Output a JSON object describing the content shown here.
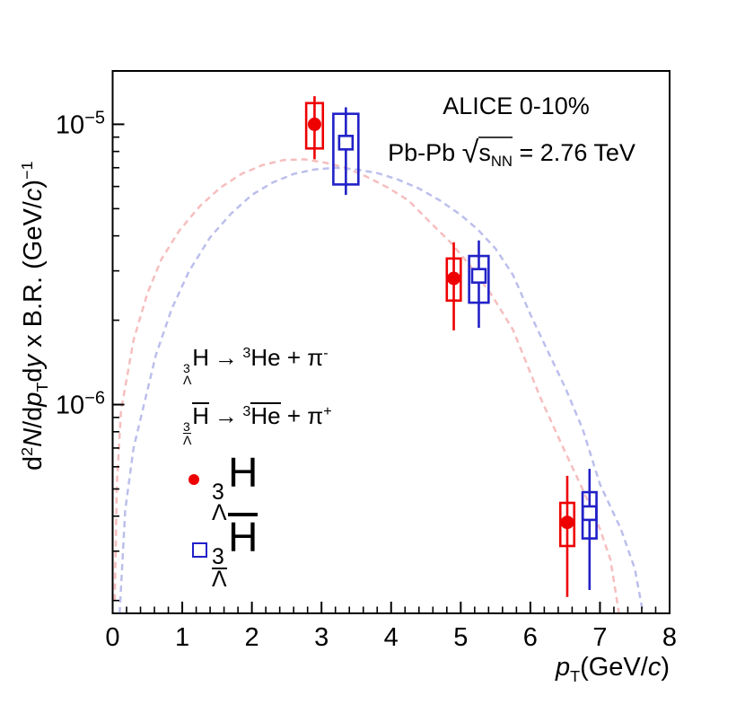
{
  "figure": {
    "annotations": {
      "experiment": "ALICE 0-10%",
      "system_prefix": "Pb-Pb ",
      "sqrt_symbol": "√",
      "sqrt_arg": "s",
      "sqrt_sub": "NN",
      "energy_suffix": " = 2.76 TeV"
    },
    "decay1": {
      "mass": "3",
      "hyperon": "Λ",
      "nucleus": "H",
      "arrow": "→",
      "product_mass": "3",
      "product": "He",
      "plus": "+",
      "pion": "π",
      "charge": "-"
    },
    "decay2": {
      "mass": "3",
      "hyperon": "Λ",
      "nucleus": "H",
      "arrow": "→",
      "product_mass": "3",
      "product": "He",
      "plus": "+",
      "pion": "π",
      "charge": "+"
    },
    "legend": [
      {
        "marker": "filled-circle",
        "color": "#ee0000",
        "mass": "3",
        "hyperon": "Λ",
        "nucleus": "H"
      },
      {
        "marker": "open-square",
        "color": "#2121c8",
        "mass": "3",
        "hyperon": "Λ",
        "nucleus": "H"
      }
    ],
    "y_title": {
      "d1": "d",
      "sup2": "2",
      "N": "N",
      "dd": "/d",
      "p": "p",
      "subT": "T",
      "d2": "d",
      "yvar": "y",
      "mid": " x B.R. (GeV/",
      "c": "c",
      "close": ")",
      "supm1": "−1"
    },
    "x_title": {
      "p": "p",
      "subT": "T",
      "open": "(GeV/",
      "c": "c",
      "close": ")"
    }
  },
  "chart_data": {
    "type": "scatter",
    "title": "ALICE 0-10% Pb-Pb sqrt(sNN) = 2.76 TeV",
    "xlabel": "pT (GeV/c)",
    "ylabel": "d2N/dpTdy x B.R. (GeV/c)-1",
    "grid": false,
    "x_axis": {
      "min": 0,
      "max": 8,
      "major_ticks": [
        0,
        1,
        2,
        3,
        4,
        5,
        6,
        7,
        8
      ],
      "minor_step": 0.2
    },
    "y_axis": {
      "scale": "log",
      "min": 1.8e-07,
      "max": 1.55e-05,
      "labeled_decades": [
        -5,
        -6
      ]
    },
    "series": [
      {
        "name": "hypertriton",
        "label": "3ΛH",
        "marker": "filled-circle",
        "color": "#ee0000",
        "points": [
          {
            "pt": 2.9,
            "y": 1e-05,
            "stat_lo": 7.5e-06,
            "stat_hi": 1.26e-05,
            "sys_lo": 8.2e-06,
            "sys_hi": 1.19e-05,
            "box_hw": 0.12
          },
          {
            "pt": 4.9,
            "y": 2.82e-06,
            "stat_lo": 1.84e-06,
            "stat_hi": 3.79e-06,
            "sys_lo": 2.35e-06,
            "sys_hi": 3.32e-06,
            "box_hw": 0.1
          },
          {
            "pt": 6.53,
            "y": 3.8e-07,
            "stat_lo": 2.06e-07,
            "stat_hi": 5.57e-07,
            "sys_lo": 3.13e-07,
            "sys_hi": 4.46e-07,
            "box_hw": 0.1
          }
        ]
      },
      {
        "name": "anti-hypertriton",
        "label": "3Λ̄H̄",
        "marker": "open-square",
        "color": "#2121c8",
        "points": [
          {
            "pt": 3.35,
            "y": 8.6e-06,
            "stat_lo": 5.6e-06,
            "stat_hi": 1.15e-05,
            "sys_lo": 6.1e-06,
            "sys_hi": 1.09e-05,
            "box_hw": 0.18
          },
          {
            "pt": 5.26,
            "y": 2.88e-06,
            "stat_lo": 1.88e-06,
            "stat_hi": 3.85e-06,
            "sys_lo": 2.31e-06,
            "sys_hi": 3.39e-06,
            "box_hw": 0.14
          },
          {
            "pt": 6.85,
            "y": 4.1e-07,
            "stat_lo": 2.18e-07,
            "stat_hi": 5.9e-07,
            "sys_lo": 3.33e-07,
            "sys_hi": 4.87e-07,
            "box_hw": 0.1
          }
        ]
      }
    ],
    "curves": [
      {
        "name": "blastwave-fit-hypertriton",
        "color": "#f6bebe",
        "style": "dashed",
        "points": [
          [
            0.03,
            2e-07
          ],
          [
            0.06,
            5.2e-07
          ],
          [
            0.12,
            9.5e-07
          ],
          [
            0.3,
            1.7e-06
          ],
          [
            0.5,
            2.5e-06
          ],
          [
            0.7,
            3.3e-06
          ],
          [
            0.95,
            4.15e-06
          ],
          [
            1.25,
            5.1e-06
          ],
          [
            1.55,
            5.95e-06
          ],
          [
            1.85,
            6.65e-06
          ],
          [
            2.15,
            7.15e-06
          ],
          [
            2.45,
            7.45e-06
          ],
          [
            2.75,
            7.5e-06
          ],
          [
            3.05,
            7.3e-06
          ],
          [
            3.35,
            7e-06
          ],
          [
            3.65,
            6.5e-06
          ],
          [
            3.95,
            5.95e-06
          ],
          [
            4.25,
            5.35e-06
          ],
          [
            4.55,
            4.5e-06
          ],
          [
            4.85,
            3.8e-06
          ],
          [
            5.15,
            3.1e-06
          ],
          [
            5.45,
            2.45e-06
          ],
          [
            5.75,
            1.85e-06
          ],
          [
            6.15,
            1.05e-06
          ],
          [
            6.45,
            7.2e-07
          ],
          [
            6.75,
            5e-07
          ],
          [
            7.0,
            3.6e-07
          ],
          [
            7.15,
            2.8e-07
          ],
          [
            7.28,
            1.75e-07
          ]
        ]
      },
      {
        "name": "blastwave-fit-anti-hypertriton",
        "color": "#bcbfec",
        "style": "dashed",
        "points": [
          [
            0.1,
            1.8e-07
          ],
          [
            0.18,
            4.2e-07
          ],
          [
            0.3,
            7e-07
          ],
          [
            0.45,
            1e-06
          ],
          [
            0.62,
            1.5e-06
          ],
          [
            0.85,
            2.2e-06
          ],
          [
            1.1,
            3e-06
          ],
          [
            1.4,
            3.95e-06
          ],
          [
            1.7,
            4.8e-06
          ],
          [
            2.0,
            5.6e-06
          ],
          [
            2.3,
            6.2e-06
          ],
          [
            2.6,
            6.65e-06
          ],
          [
            2.9,
            6.9e-06
          ],
          [
            3.2,
            7e-06
          ],
          [
            3.5,
            6.9e-06
          ],
          [
            3.8,
            6.7e-06
          ],
          [
            4.1,
            6.35e-06
          ],
          [
            4.4,
            5.9e-06
          ],
          [
            4.7,
            5.35e-06
          ],
          [
            5.0,
            4.75e-06
          ],
          [
            5.25,
            4.2e-06
          ],
          [
            5.5,
            3.6e-06
          ],
          [
            5.75,
            2.9e-06
          ],
          [
            6.0,
            2.1e-06
          ],
          [
            6.25,
            1.55e-06
          ],
          [
            6.5,
            1.15e-06
          ],
          [
            6.75,
            8.2e-07
          ],
          [
            7.0,
            5.2e-07
          ],
          [
            7.3,
            3.6e-07
          ],
          [
            7.5,
            2.6e-07
          ],
          [
            7.62,
            1.8e-07
          ]
        ]
      }
    ]
  }
}
